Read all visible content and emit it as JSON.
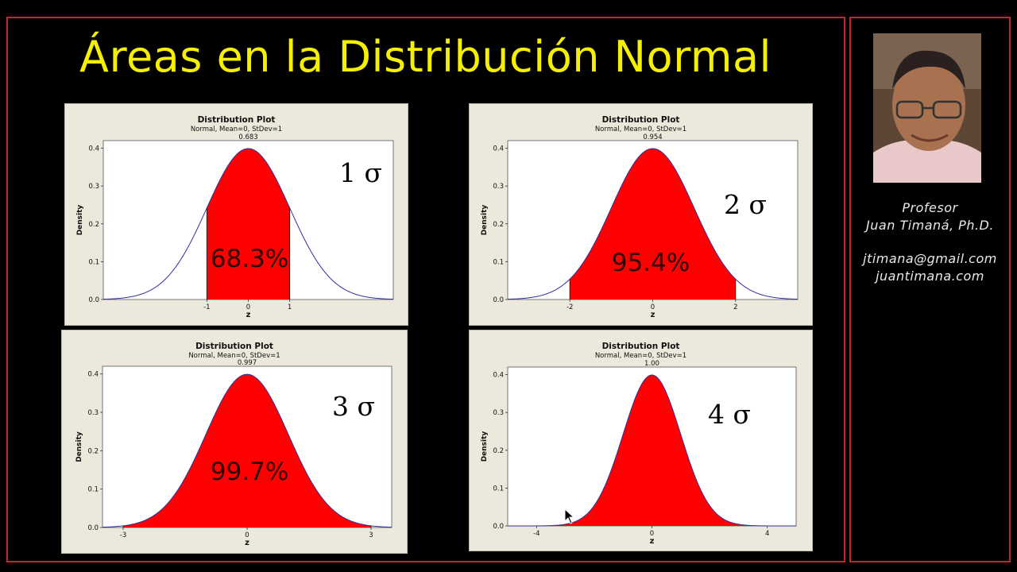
{
  "title": "Áreas en la Distribución Normal",
  "profile": {
    "role": "Profesor",
    "name": "Juan Timaná, Ph.D.",
    "email": "jtimana@gmail.com",
    "website": "juantimana.com"
  },
  "colors": {
    "title": "#f5f000",
    "fill": "#ff0000",
    "curve": "#3030a0",
    "frame": "#c8242a"
  },
  "chart_data": [
    {
      "type": "area",
      "title": "Distribution Plot",
      "subtitle": "Normal, Mean=0, StDev=1",
      "xlabel": "z",
      "ylabel": "Density",
      "distribution": {
        "name": "normal",
        "mean": 0,
        "stdev": 1
      },
      "xlim": [
        -3.5,
        3.5
      ],
      "ylim": [
        0,
        0.42
      ],
      "y_ticks": [
        "0.0",
        "0.1",
        "0.2",
        "0.3",
        "0.4"
      ],
      "x_ticks": [
        -1,
        0,
        1
      ],
      "shaded_interval": [
        -1,
        1
      ],
      "area_label": "0.683",
      "sigma_label": "1 σ",
      "percent_label": "68.3%"
    },
    {
      "type": "area",
      "title": "Distribution Plot",
      "subtitle": "Normal, Mean=0, StDev=1",
      "xlabel": "z",
      "ylabel": "Density",
      "distribution": {
        "name": "normal",
        "mean": 0,
        "stdev": 1
      },
      "xlim": [
        -3.5,
        3.5
      ],
      "ylim": [
        0,
        0.42
      ],
      "y_ticks": [
        "0.0",
        "0.1",
        "0.2",
        "0.3",
        "0.4"
      ],
      "x_ticks": [
        -2,
        0,
        2
      ],
      "shaded_interval": [
        -2,
        2
      ],
      "area_label": "0.954",
      "sigma_label": "2 σ",
      "percent_label": "95.4%"
    },
    {
      "type": "area",
      "title": "Distribution Plot",
      "subtitle": "Normal, Mean=0, StDev=1",
      "xlabel": "z",
      "ylabel": "Density",
      "distribution": {
        "name": "normal",
        "mean": 0,
        "stdev": 1
      },
      "xlim": [
        -3.5,
        3.5
      ],
      "ylim": [
        0,
        0.42
      ],
      "y_ticks": [
        "0.0",
        "0.1",
        "0.2",
        "0.3",
        "0.4"
      ],
      "x_ticks": [
        -3,
        0,
        3
      ],
      "shaded_interval": [
        -3,
        3
      ],
      "area_label": "0.997",
      "sigma_label": "3 σ",
      "percent_label": "99.7%"
    },
    {
      "type": "area",
      "title": "Distribution Plot",
      "subtitle": "Normal, Mean=0, StDev=1",
      "xlabel": "z",
      "ylabel": "Density",
      "distribution": {
        "name": "normal",
        "mean": 0,
        "stdev": 1
      },
      "xlim": [
        -5,
        5
      ],
      "ylim": [
        0,
        0.42
      ],
      "y_ticks": [
        "0.0",
        "0.1",
        "0.2",
        "0.3",
        "0.4"
      ],
      "x_ticks": [
        -4,
        0,
        4
      ],
      "shaded_interval": [
        -4,
        4
      ],
      "area_label": "1.00",
      "sigma_label": "4 σ",
      "percent_label": ""
    }
  ]
}
